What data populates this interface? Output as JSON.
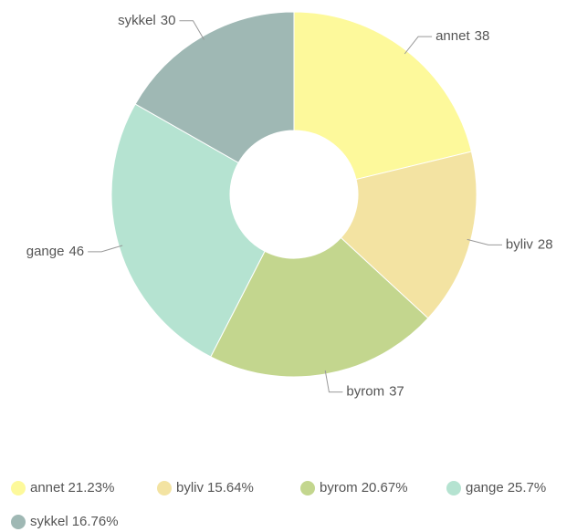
{
  "chart_data": {
    "type": "donut",
    "categories": [
      "annet",
      "byliv",
      "byrom",
      "gange",
      "sykkel"
    ],
    "values": [
      38,
      28,
      37,
      46,
      30
    ],
    "colors": [
      "#fdf99b",
      "#f3e3a2",
      "#c3d68e",
      "#b5e3d1",
      "#9fb8b4"
    ],
    "legend_labels": [
      "21.23%",
      "15.64%",
      "20.67%",
      "25.7%",
      "16.76%"
    ]
  }
}
